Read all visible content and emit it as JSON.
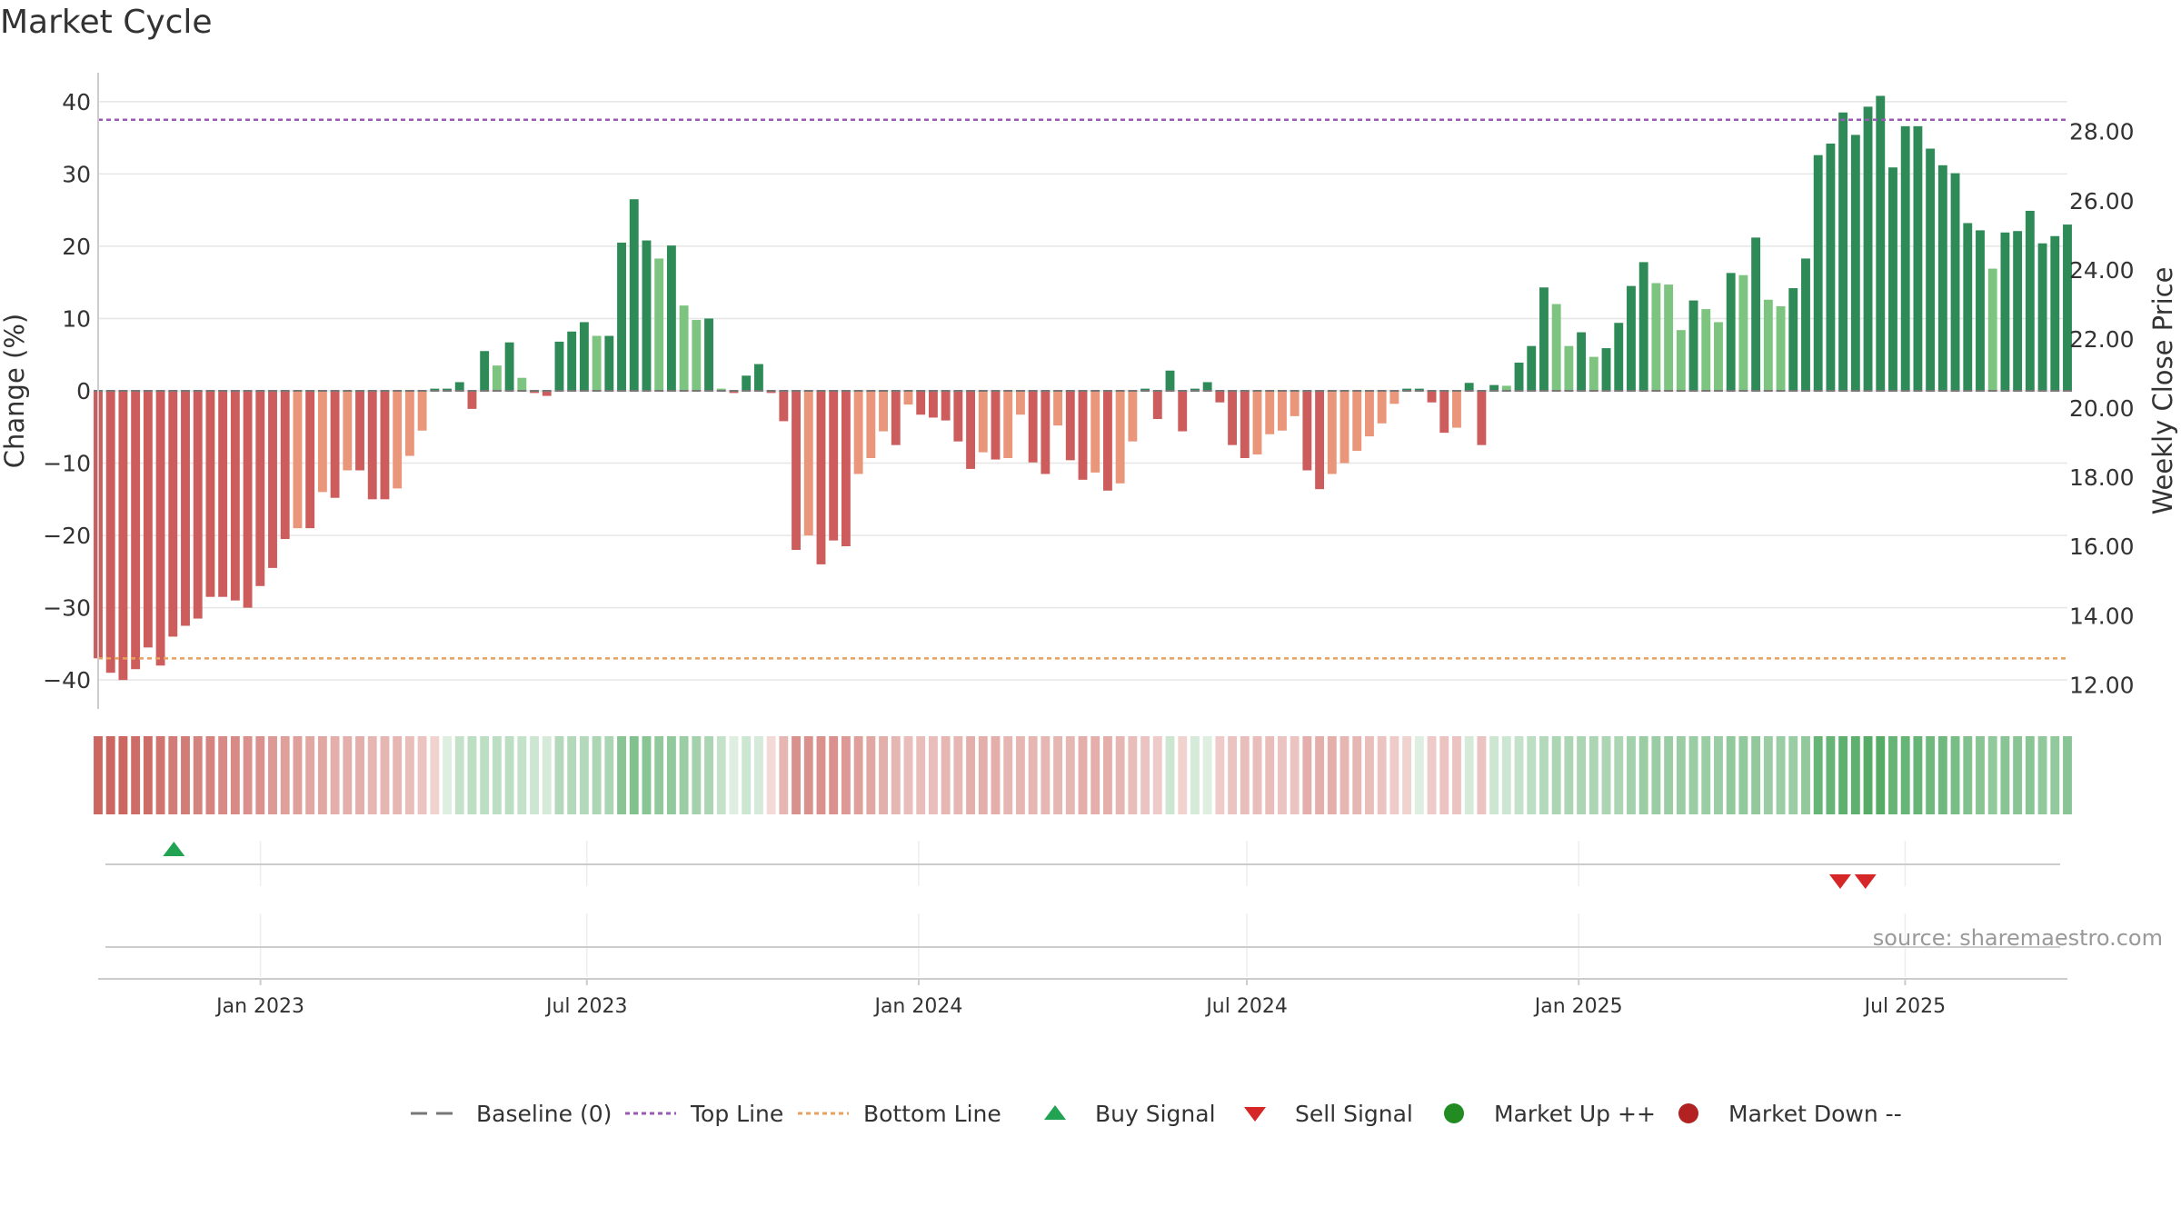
{
  "chart_data": {
    "type": "bar",
    "title": "Market Cycle",
    "ylabel_left": "Change (%)",
    "ylabel_right": "Weekly Close Price",
    "ylim_left": [
      -44,
      44
    ],
    "ylim_right": [
      11.3,
      29.7
    ],
    "yticks_left": [
      "40",
      "30",
      "20",
      "10",
      "0",
      "−10",
      "−20",
      "−30",
      "−40"
    ],
    "yticks_left_values": [
      40,
      30,
      20,
      10,
      0,
      -10,
      -20,
      -30,
      -40
    ],
    "yticks_right": [
      "28.00",
      "26.00",
      "24.00",
      "22.00",
      "20.00",
      "18.00",
      "16.00",
      "14.00",
      "12.00"
    ],
    "yticks_right_values": [
      28,
      26,
      24,
      22,
      20,
      18,
      16,
      14,
      12
    ],
    "x_start": "2022-10-03",
    "x_range": [
      "2022-10-03",
      "2025-09-29"
    ],
    "xticks": [
      {
        "date": "2023-01-01",
        "label": "Jan 2023"
      },
      {
        "date": "2023-07-01",
        "label": "Jul 2023"
      },
      {
        "date": "2024-01-01",
        "label": "Jan 2024"
      },
      {
        "date": "2024-07-01",
        "label": "Jul 2024"
      },
      {
        "date": "2025-01-01",
        "label": "Jan 2025"
      },
      {
        "date": "2025-07-01",
        "label": "Jul 2025"
      }
    ],
    "top_line": 37.5,
    "bottom_line": -37,
    "baseline": 0,
    "values": [
      -37,
      -39,
      -40,
      -38.5,
      -35.5,
      -38,
      -34,
      -32.5,
      -31.5,
      -28.5,
      -28.5,
      -29,
      -30,
      -27,
      -24.5,
      -20.5,
      -19,
      -19,
      -14,
      -14.8,
      -11,
      -11,
      -15,
      -15,
      -13.5,
      -9,
      -5.5,
      0.3,
      0.3,
      1.2,
      -2.5,
      5.5,
      3.5,
      6.7,
      1.8,
      -0.3,
      -0.7,
      6.8,
      8.2,
      9.5,
      7.6,
      7.6,
      20.5,
      26.5,
      20.8,
      18.3,
      20.1,
      11.8,
      9.8,
      10,
      0.3,
      -0.3,
      2.1,
      3.7,
      -0.3,
      -4.2,
      -22,
      -20,
      -24,
      -20.7,
      -21.5,
      -11.5,
      -9.3,
      -5.6,
      -7.5,
      -1.9,
      -3.3,
      -3.7,
      -4.1,
      -7,
      -10.8,
      -8.5,
      -9.5,
      -9.3,
      -3.3,
      -9.9,
      -11.5,
      -4.8,
      -9.6,
      -12.3,
      -11.3,
      -13.8,
      -12.8,
      -7,
      0.3,
      -3.9,
      2.8,
      -5.6,
      0.3,
      1.2,
      -1.6,
      -7.5,
      -9.3,
      -8.8,
      -6,
      -5.5,
      -3.5,
      -11,
      -13.6,
      -11.5,
      -10,
      -8.3,
      -6.3,
      -4.5,
      -1.8,
      0.3,
      0.3,
      -1.6,
      -5.8,
      -5.1,
      1.1,
      -7.5,
      0.8,
      0.7,
      3.9,
      6.2,
      14.3,
      12,
      6.2,
      8.1,
      4.7,
      5.9,
      9.4,
      14.5,
      17.8,
      14.9,
      14.7,
      8.4,
      12.5,
      11.3,
      9.5,
      16.3,
      16,
      21.2,
      12.6,
      11.7,
      14.2,
      18.3,
      32.6,
      34.2,
      38.5,
      35.4,
      39.3,
      40.8,
      30.9,
      36.6,
      36.6,
      33.5,
      31.2,
      30.1,
      23.2,
      22.2,
      16.9,
      21.9,
      22.1,
      24.9,
      20.4,
      21.4,
      23
    ],
    "heat_strip": {
      "label": "",
      "values": [
        -0.85,
        -0.85,
        -0.85,
        -0.8,
        -0.8,
        -0.75,
        -0.7,
        -0.7,
        -0.65,
        -0.65,
        -0.6,
        -0.6,
        -0.55,
        -0.55,
        -0.5,
        -0.45,
        -0.45,
        -0.4,
        -0.4,
        -0.35,
        -0.35,
        -0.35,
        -0.3,
        -0.3,
        -0.3,
        -0.25,
        -0.2,
        -0.1,
        0.05,
        0.2,
        0.25,
        0.25,
        0.25,
        0.25,
        0.2,
        0.15,
        0.1,
        0.3,
        0.3,
        0.3,
        0.35,
        0.35,
        0.55,
        0.6,
        0.55,
        0.5,
        0.5,
        0.45,
        0.4,
        0.35,
        0.2,
        0.05,
        0.15,
        0.1,
        -0.05,
        -0.3,
        -0.55,
        -0.55,
        -0.55,
        -0.55,
        -0.5,
        -0.45,
        -0.4,
        -0.35,
        -0.3,
        -0.25,
        -0.25,
        -0.25,
        -0.3,
        -0.3,
        -0.35,
        -0.35,
        -0.35,
        -0.3,
        -0.3,
        -0.3,
        -0.3,
        -0.3,
        -0.3,
        -0.35,
        -0.35,
        -0.35,
        -0.3,
        -0.25,
        -0.2,
        -0.15,
        0.15,
        -0.1,
        0.1,
        0.05,
        -0.15,
        -0.2,
        -0.25,
        -0.25,
        -0.25,
        -0.2,
        -0.2,
        -0.35,
        -0.35,
        -0.35,
        -0.3,
        -0.3,
        -0.25,
        -0.2,
        -0.15,
        -0.1,
        0.05,
        -0.15,
        -0.2,
        -0.2,
        0.1,
        -0.2,
        0.15,
        0.15,
        0.2,
        0.25,
        0.3,
        0.35,
        0.35,
        0.35,
        0.35,
        0.35,
        0.35,
        0.4,
        0.45,
        0.45,
        0.45,
        0.45,
        0.45,
        0.45,
        0.45,
        0.5,
        0.5,
        0.5,
        0.45,
        0.45,
        0.45,
        0.5,
        0.75,
        0.75,
        0.8,
        0.8,
        0.85,
        0.85,
        0.75,
        0.75,
        0.75,
        0.7,
        0.7,
        0.65,
        0.6,
        0.55,
        0.5,
        0.55,
        0.55,
        0.55,
        0.5,
        0.5,
        0.55
      ]
    },
    "buy_signals": [
      "2022-11-14"
    ],
    "sell_signals": [
      "2025-05-26",
      "2025-06-09"
    ],
    "legend": [
      {
        "key": "baseline",
        "label": "Baseline (0)",
        "color": "#777777"
      },
      {
        "key": "top",
        "label": "Top Line",
        "color": "#9b59b6"
      },
      {
        "key": "bottom",
        "label": "Bottom Line",
        "color": "#e8a15c"
      },
      {
        "key": "buy",
        "label": "Buy Signal",
        "color": "#22a354"
      },
      {
        "key": "sell",
        "label": "Sell Signal",
        "color": "#d62728"
      },
      {
        "key": "up",
        "label": "Market Up ++",
        "color": "#228b22"
      },
      {
        "key": "down",
        "label": "Market Down --",
        "color": "#b22222"
      }
    ],
    "legend_position": "bottom",
    "source": "source: sharemaestro.com",
    "grid": true
  },
  "colors": {
    "dark_green": "#2e8b57",
    "light_green": "#7cc47f",
    "dark_red": "#cd5c5c",
    "light_red": "#e9967a",
    "grid": "#e6e6e6",
    "axis": "#cccccc",
    "text": "#333333"
  }
}
